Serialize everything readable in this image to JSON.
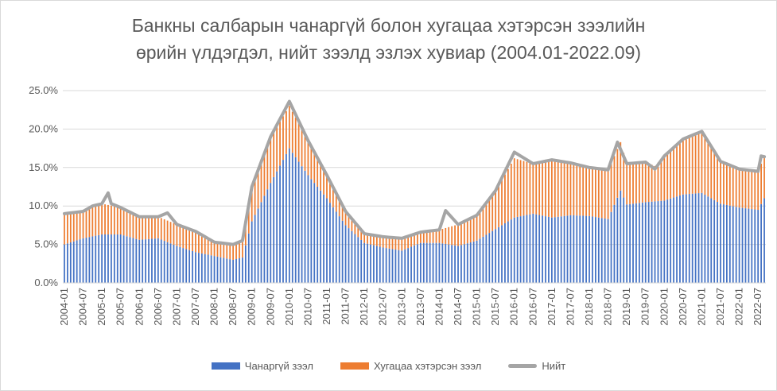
{
  "chart_title": {
    "line1": "Банкны салбарын чанаргүй болон хугацаа хэтэрсэн зээлийн",
    "line2": "өрийн үлдэгдэл, нийт зээлд эзлэх хувиар (2004.01-2022.09)"
  },
  "legend": {
    "npl_label": "Чанаргүй зээл",
    "overdue_label": "Хугацаа хэтэрсэн зээл",
    "total_label": "Нийт"
  },
  "colors": {
    "npl": "#4472C4",
    "overdue": "#ED7D31",
    "total": "#A5A5A5",
    "grid": "#D9D9D9",
    "text": "#595959"
  },
  "chart_data": {
    "type": "bar",
    "stacked": true,
    "unit": "%",
    "ylim": [
      0,
      25
    ],
    "y_ticks": [
      "0.0%",
      "5.0%",
      "10.0%",
      "15.0%",
      "20.0%",
      "25.0%"
    ],
    "x_ticks": [
      "2004-01",
      "2004-07",
      "2005-01",
      "2005-07",
      "2006-01",
      "2006-07",
      "2007-01",
      "2007-07",
      "2008-01",
      "2008-07",
      "2009-01",
      "2009-07",
      "2010-01",
      "2010-07",
      "2011-01",
      "2011-07",
      "2012-01",
      "2012-07",
      "2013-01",
      "2013-07",
      "2014-01",
      "2014-07",
      "2015-01",
      "2015-07",
      "2016-01",
      "2016-07",
      "2017-01",
      "2017-07",
      "2018-01",
      "2018-07",
      "2019-01",
      "2019-07",
      "2020-01",
      "2020-07",
      "2021-01",
      "2021-07",
      "2022-01",
      "2022-07"
    ],
    "grid": true,
    "legend_position": "bottom",
    "start": "2004-01",
    "end": "2022-09",
    "frequency": "monthly",
    "series": [
      {
        "name": "Чанаргүй зээл",
        "anchors": [
          [
            "2004-01",
            5.0
          ],
          [
            "2004-07",
            5.8
          ],
          [
            "2005-01",
            6.3
          ],
          [
            "2005-07",
            6.3
          ],
          [
            "2006-01",
            5.6
          ],
          [
            "2006-07",
            5.8
          ],
          [
            "2007-01",
            4.8
          ],
          [
            "2007-07",
            4.0
          ],
          [
            "2008-01",
            3.5
          ],
          [
            "2008-07",
            3.0
          ],
          [
            "2008-10",
            3.3
          ],
          [
            "2009-01",
            8.0
          ],
          [
            "2009-07",
            13.0
          ],
          [
            "2010-01",
            17.5
          ],
          [
            "2010-07",
            14.0
          ],
          [
            "2011-01",
            11.0
          ],
          [
            "2011-07",
            7.5
          ],
          [
            "2012-01",
            5.2
          ],
          [
            "2012-07",
            4.6
          ],
          [
            "2013-01",
            4.2
          ],
          [
            "2013-07",
            5.2
          ],
          [
            "2014-01",
            5.2
          ],
          [
            "2014-07",
            4.8
          ],
          [
            "2015-01",
            5.5
          ],
          [
            "2015-07",
            7.0
          ],
          [
            "2016-01",
            8.5
          ],
          [
            "2016-07",
            9.0
          ],
          [
            "2017-01",
            8.5
          ],
          [
            "2017-07",
            8.8
          ],
          [
            "2018-01",
            8.7
          ],
          [
            "2018-07",
            8.3
          ],
          [
            "2018-11",
            12.0
          ],
          [
            "2019-01",
            10.2
          ],
          [
            "2019-07",
            10.5
          ],
          [
            "2020-01",
            10.7
          ],
          [
            "2020-07",
            11.5
          ],
          [
            "2021-01",
            11.7
          ],
          [
            "2021-07",
            10.3
          ],
          [
            "2022-01",
            9.8
          ],
          [
            "2022-07",
            9.5
          ],
          [
            "2022-09",
            11.0
          ]
        ]
      },
      {
        "name": "Хугацаа хэтэрсэн зээл",
        "anchors": [
          [
            "2004-01",
            4.0
          ],
          [
            "2004-07",
            3.5
          ],
          [
            "2005-01",
            4.0
          ],
          [
            "2005-07",
            3.5
          ],
          [
            "2006-01",
            3.0
          ],
          [
            "2006-07",
            2.8
          ],
          [
            "2007-01",
            2.8
          ],
          [
            "2007-07",
            2.7
          ],
          [
            "2008-01",
            1.8
          ],
          [
            "2008-07",
            2.0
          ],
          [
            "2008-10",
            2.2
          ],
          [
            "2009-01",
            4.5
          ],
          [
            "2009-07",
            6.0
          ],
          [
            "2010-01",
            5.5
          ],
          [
            "2010-07",
            4.5
          ],
          [
            "2011-01",
            3.0
          ],
          [
            "2011-07",
            1.8
          ],
          [
            "2012-01",
            1.2
          ],
          [
            "2012-07",
            1.4
          ],
          [
            "2013-01",
            1.6
          ],
          [
            "2013-07",
            1.4
          ],
          [
            "2014-01",
            1.7
          ],
          [
            "2014-07",
            2.8
          ],
          [
            "2015-01",
            3.5
          ],
          [
            "2015-07",
            5.0
          ],
          [
            "2016-01",
            7.7
          ],
          [
            "2016-07",
            6.5
          ],
          [
            "2017-01",
            7.5
          ],
          [
            "2017-07",
            6.8
          ],
          [
            "2018-01",
            6.3
          ],
          [
            "2018-07",
            6.4
          ],
          [
            "2018-11",
            6.3
          ],
          [
            "2019-01",
            5.3
          ],
          [
            "2019-07",
            5.2
          ],
          [
            "2019-10",
            4.6
          ],
          [
            "2020-01",
            5.8
          ],
          [
            "2020-07",
            7.2
          ],
          [
            "2021-01",
            8.0
          ],
          [
            "2021-07",
            5.5
          ],
          [
            "2022-01",
            5.0
          ],
          [
            "2022-07",
            5.0
          ],
          [
            "2022-09",
            5.5
          ]
        ]
      },
      {
        "name": "Нийт",
        "anchors": [
          [
            "2004-01",
            9.0
          ],
          [
            "2004-07",
            9.3
          ],
          [
            "2004-10",
            10.0
          ],
          [
            "2005-01",
            10.3
          ],
          [
            "2005-03",
            11.7
          ],
          [
            "2005-04",
            10.3
          ],
          [
            "2005-07",
            9.8
          ],
          [
            "2006-01",
            8.6
          ],
          [
            "2006-07",
            8.6
          ],
          [
            "2006-10",
            9.1
          ],
          [
            "2007-01",
            7.6
          ],
          [
            "2007-07",
            6.7
          ],
          [
            "2008-01",
            5.3
          ],
          [
            "2008-07",
            5.0
          ],
          [
            "2008-10",
            5.5
          ],
          [
            "2009-01",
            12.5
          ],
          [
            "2009-07",
            19.0
          ],
          [
            "2010-01",
            23.6
          ],
          [
            "2010-07",
            18.5
          ],
          [
            "2011-01",
            14.0
          ],
          [
            "2011-07",
            9.3
          ],
          [
            "2012-01",
            6.4
          ],
          [
            "2012-07",
            6.0
          ],
          [
            "2013-01",
            5.8
          ],
          [
            "2013-07",
            6.6
          ],
          [
            "2014-01",
            6.9
          ],
          [
            "2014-03",
            9.4
          ],
          [
            "2014-07",
            7.6
          ],
          [
            "2015-01",
            8.8
          ],
          [
            "2015-07",
            12.0
          ],
          [
            "2016-01",
            17.0
          ],
          [
            "2016-07",
            15.5
          ],
          [
            "2017-01",
            16.0
          ],
          [
            "2017-07",
            15.6
          ],
          [
            "2018-01",
            15.0
          ],
          [
            "2018-07",
            14.7
          ],
          [
            "2018-10",
            18.3
          ],
          [
            "2019-01",
            15.5
          ],
          [
            "2019-07",
            15.7
          ],
          [
            "2019-10",
            14.8
          ],
          [
            "2020-01",
            16.5
          ],
          [
            "2020-07",
            18.7
          ],
          [
            "2021-01",
            19.7
          ],
          [
            "2021-07",
            15.8
          ],
          [
            "2022-01",
            14.8
          ],
          [
            "2022-07",
            14.5
          ],
          [
            "2022-08",
            16.5
          ],
          [
            "2022-09",
            16.4
          ]
        ]
      }
    ]
  }
}
